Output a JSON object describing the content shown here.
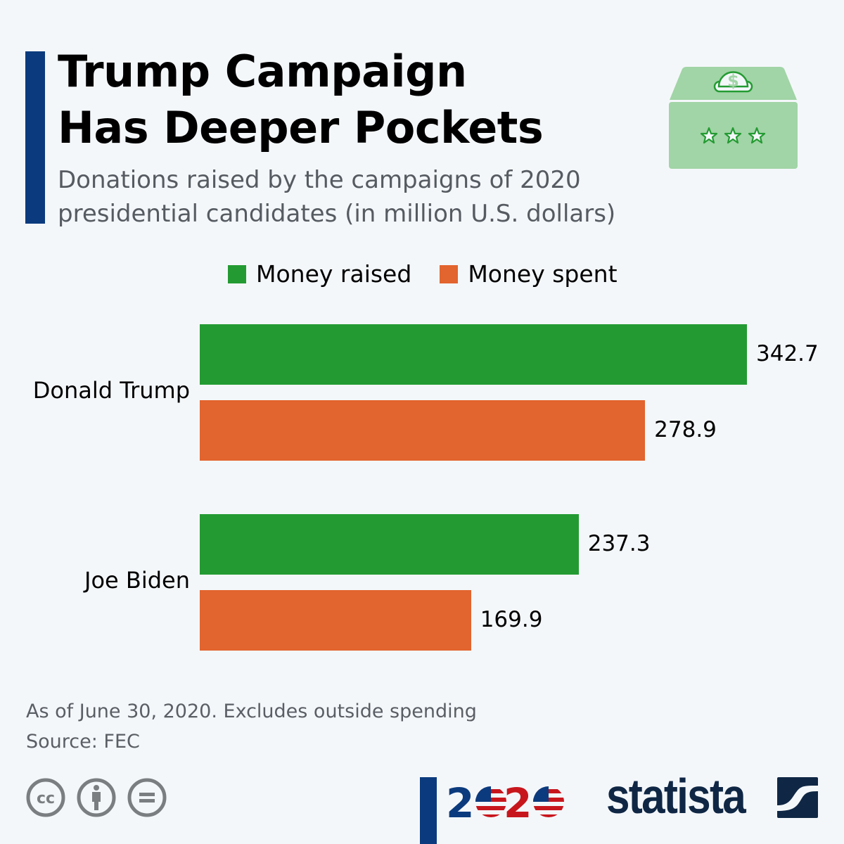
{
  "header": {
    "title_line1": "Trump Campaign",
    "title_line2": "Has Deeper Pockets",
    "subtitle_line1": "Donations raised by the campaigns of 2020",
    "subtitle_line2": "presidential candidates (in million U.S. dollars)",
    "icon": "donation-box-icon"
  },
  "colors": {
    "accent": "#0b3b7e",
    "raised": "#239b32",
    "spent": "#e2642e",
    "background": "#f4f7fa"
  },
  "chart_data": {
    "type": "bar",
    "orientation": "horizontal",
    "title": "Trump Campaign Has Deeper Pockets",
    "subtitle": "Donations raised by the campaigns of 2020 presidential candidates (in million U.S. dollars)",
    "categories": [
      "Donald Trump",
      "Joe Biden"
    ],
    "series": [
      {
        "name": "Money raised",
        "values": [
          342.7,
          237.3
        ],
        "labels": [
          "342.7",
          "237.3"
        ],
        "color": "#239b32"
      },
      {
        "name": "Money spent",
        "values": [
          278.9,
          169.9
        ],
        "labels": [
          "278.9",
          "169.9"
        ],
        "color": "#e2642e"
      }
    ],
    "xlim": [
      0,
      342.7
    ],
    "grid": false,
    "legend_position": "top"
  },
  "footer": {
    "note": "As of June 30, 2020. Excludes outside spending",
    "source": "Source: FEC",
    "license_icons": [
      "cc-icon",
      "attribution-icon",
      "no-derivatives-icon"
    ],
    "logo_2020": "2020",
    "brand": "statista"
  }
}
